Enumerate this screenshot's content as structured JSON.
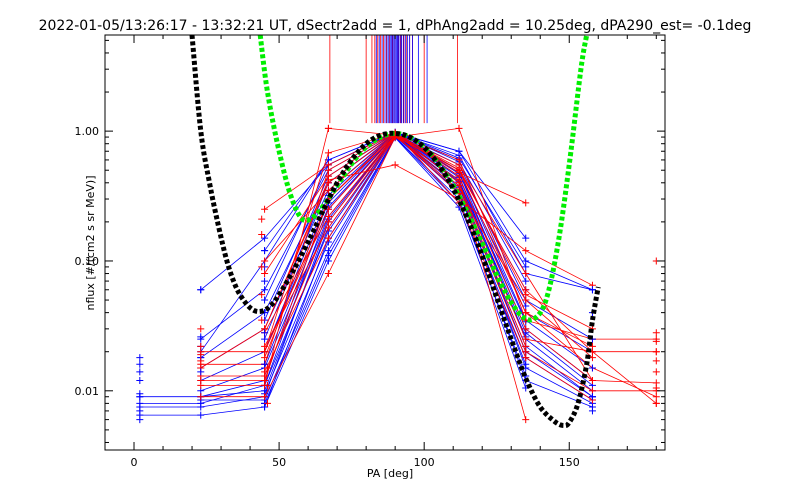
{
  "chart_data": {
    "type": "line",
    "title": "2022-01-05/13:26:17 - 13:32:21 UT, dSectr2add = 1, dPhAng2add = 10.25deg, dPA290_est=  -0.1deg",
    "xlabel": "PA [deg]",
    "ylabel": "nflux [#/(cm2 s sr MeV)]",
    "xlim": [
      -10,
      183
    ],
    "ylim": [
      0.0035,
      5.5
    ],
    "yscale": "log",
    "x_ticks": [
      0,
      50,
      100,
      150
    ],
    "x_tick_labels": [
      "0",
      "50",
      "100",
      "150"
    ],
    "y_ticks": [
      0.01,
      0.1,
      1.0
    ],
    "y_tick_labels": [
      "0.01",
      "0.10",
      "1.00"
    ],
    "grid": false,
    "colors": {
      "series_red": "#ff0000",
      "series_blue": "#0000ff",
      "fit_green": "#00ee00",
      "fit_black": "#000000"
    },
    "series": [
      {
        "color": "#0000ff",
        "style": "line-plus",
        "x": [
          2,
          23,
          45,
          67,
          90,
          112,
          135,
          158
        ],
        "y": [
          0.009,
          0.009,
          0.012,
          0.3,
          0.96,
          0.48,
          0.03,
          0.012
        ]
      },
      {
        "color": "#0000ff",
        "style": "line-plus",
        "x": [
          2,
          23,
          45,
          67,
          90,
          112,
          135,
          158
        ],
        "y": [
          0.008,
          0.008,
          0.011,
          0.25,
          0.95,
          0.45,
          0.025,
          0.01
        ]
      },
      {
        "color": "#0000ff",
        "style": "line-plus",
        "x": [
          2,
          23,
          45,
          67,
          90,
          112,
          135,
          158
        ],
        "y": [
          0.0075,
          0.0075,
          0.009,
          0.2,
          0.94,
          0.4,
          0.02,
          0.009
        ]
      },
      {
        "color": "#0000ff",
        "style": "line-plus",
        "x": [
          2,
          23,
          45,
          67,
          90,
          112,
          135,
          158
        ],
        "y": [
          0.0065,
          0.0065,
          0.0075,
          0.15,
          0.93,
          0.35,
          0.015,
          0.008
        ]
      },
      {
        "color": "#0000ff",
        "style": "line-plus",
        "x": [
          23,
          45,
          67,
          90,
          112,
          135,
          158
        ],
        "y": [
          0.025,
          0.06,
          0.5,
          0.97,
          0.6,
          0.04,
          0.02
        ]
      },
      {
        "color": "#0000ff",
        "style": "line-plus",
        "x": [
          23,
          45,
          67,
          90,
          112,
          135,
          158
        ],
        "y": [
          0.018,
          0.04,
          0.4,
          0.95,
          0.55,
          0.05,
          0.025
        ]
      },
      {
        "color": "#0000ff",
        "style": "line-plus",
        "x": [
          23,
          45,
          67,
          90,
          112,
          135,
          158
        ],
        "y": [
          0.015,
          0.03,
          0.35,
          0.96,
          0.5,
          0.035,
          0.015
        ]
      },
      {
        "color": "#0000ff",
        "style": "line-plus",
        "x": [
          23,
          45,
          67,
          90,
          112,
          135,
          158
        ],
        "y": [
          0.012,
          0.02,
          0.28,
          0.94,
          0.42,
          0.028,
          0.011
        ]
      },
      {
        "color": "#0000ff",
        "style": "line-plus",
        "x": [
          23,
          45,
          67,
          90,
          112,
          135,
          158
        ],
        "y": [
          0.01,
          0.015,
          0.22,
          0.93,
          0.38,
          0.022,
          0.009
        ]
      },
      {
        "color": "#0000ff",
        "style": "line-plus",
        "x": [
          23,
          45,
          67,
          90,
          112,
          135,
          158
        ],
        "y": [
          0.009,
          0.01,
          0.18,
          0.92,
          0.33,
          0.018,
          0.0085
        ]
      },
      {
        "color": "#0000ff",
        "style": "line-plus",
        "x": [
          23,
          45,
          67,
          90,
          112,
          135,
          158
        ],
        "y": [
          0.0085,
          0.0085,
          0.12,
          0.9,
          0.3,
          0.012,
          0.0075
        ]
      },
      {
        "color": "#0000ff",
        "style": "line-plus",
        "x": [
          23,
          45,
          67,
          90,
          112,
          135,
          158
        ],
        "y": [
          0.02,
          0.1,
          0.6,
          0.98,
          0.7,
          0.1,
          0.06
        ]
      },
      {
        "color": "#0000ff",
        "style": "line-plus",
        "x": [
          23,
          45,
          67,
          90,
          112,
          135,
          158
        ],
        "y": [
          0.06,
          0.15,
          0.55,
          0.97,
          0.65,
          0.08,
          0.06
        ]
      },
      {
        "color": "#0000ff",
        "style": "line-plus",
        "x": [
          45,
          67,
          90,
          112,
          135
        ],
        "y": [
          0.025,
          0.4,
          0.96,
          0.5,
          0.06
        ]
      },
      {
        "color": "#0000ff",
        "style": "line-plus",
        "x": [
          45,
          67,
          90,
          112,
          135
        ],
        "y": [
          0.02,
          0.32,
          0.95,
          0.47,
          0.045
        ]
      },
      {
        "color": "#0000ff",
        "style": "line-plus",
        "x": [
          45,
          67,
          90,
          112,
          135
        ],
        "y": [
          0.016,
          0.26,
          0.94,
          0.44,
          0.034
        ]
      },
      {
        "color": "#0000ff",
        "style": "line-plus",
        "x": [
          45,
          67,
          90,
          112,
          135
        ],
        "y": [
          0.013,
          0.21,
          0.93,
          0.41,
          0.026
        ]
      },
      {
        "color": "#0000ff",
        "style": "line-plus",
        "x": [
          45,
          67,
          90,
          112,
          135
        ],
        "y": [
          0.011,
          0.17,
          0.92,
          0.37,
          0.02
        ]
      },
      {
        "color": "#0000ff",
        "style": "line-plus",
        "x": [
          45,
          67,
          90,
          112,
          135
        ],
        "y": [
          0.0095,
          0.14,
          0.91,
          0.34,
          0.016
        ]
      },
      {
        "color": "#0000ff",
        "style": "line-plus",
        "x": [
          45,
          67,
          90,
          112,
          135
        ],
        "y": [
          0.035,
          0.45,
          0.97,
          0.58,
          0.07
        ]
      },
      {
        "color": "#0000ff",
        "style": "line-plus",
        "x": [
          45,
          67,
          90,
          112,
          135
        ],
        "y": [
          0.05,
          0.55,
          0.98,
          0.62,
          0.09
        ]
      },
      {
        "color": "#0000ff",
        "style": "line-plus",
        "x": [
          45,
          67,
          90,
          112,
          135
        ],
        "y": [
          0.008,
          0.11,
          0.9,
          0.28,
          0.013
        ]
      },
      {
        "color": "#0000ff",
        "style": "line-plus",
        "x": [
          45,
          67,
          90,
          112,
          135
        ],
        "y": [
          0.0075,
          0.1,
          0.89,
          0.26,
          0.0105
        ]
      },
      {
        "color": "#0000ff",
        "style": "line-plus",
        "x": [
          45,
          67,
          90,
          112,
          135
        ],
        "y": [
          0.12,
          0.6,
          0.97,
          0.7,
          0.15
        ]
      },
      {
        "color": "#ff0000",
        "style": "line-plus",
        "x": [
          23,
          45,
          67,
          90,
          112,
          135,
          158,
          180
        ],
        "y": [
          0.013,
          0.013,
          0.2,
          0.92,
          0.5,
          0.06,
          0.02,
          0.008
        ]
      },
      {
        "color": "#ff0000",
        "style": "line-plus",
        "x": [
          23,
          45,
          67,
          90,
          112,
          135,
          158,
          180
        ],
        "y": [
          0.012,
          0.012,
          0.3,
          0.95,
          0.6,
          0.04,
          0.015,
          0.009
        ]
      },
      {
        "color": "#ff0000",
        "style": "line-plus",
        "x": [
          23,
          45,
          67,
          90,
          112,
          135,
          158,
          180
        ],
        "y": [
          0.016,
          0.016,
          0.5,
          0.97,
          0.45,
          0.03,
          0.012,
          0.0115
        ]
      },
      {
        "color": "#ff0000",
        "style": "line-plus",
        "x": [
          23,
          45,
          67,
          90,
          112,
          135,
          158,
          180
        ],
        "y": [
          0.02,
          0.02,
          0.68,
          0.96,
          0.4,
          0.025,
          0.02,
          0.02
        ]
      },
      {
        "color": "#ff0000",
        "style": "line-plus",
        "x": [
          23,
          45,
          67,
          90,
          112,
          135,
          158,
          180
        ],
        "y": [
          0.011,
          0.011,
          1.05,
          0.93,
          0.35,
          0.02,
          0.01,
          0.01
        ]
      },
      {
        "color": "#ff0000",
        "style": "line-plus",
        "x": [
          23,
          45,
          67,
          90,
          112,
          135,
          158,
          180
        ],
        "y": [
          0.009,
          0.009,
          0.08,
          0.9,
          1.05,
          0.035,
          0.025,
          0.025
        ]
      },
      {
        "color": "#ff0000",
        "style": "line-plus",
        "x": [
          23,
          45,
          67,
          90,
          112,
          135,
          158
        ],
        "y": [
          0.015,
          0.03,
          0.42,
          0.55,
          0.3,
          0.12,
          0.065
        ]
      },
      {
        "color": "#ff0000",
        "style": "line-plus",
        "x": [
          45,
          67,
          90,
          112,
          135,
          158
        ],
        "y": [
          0.25,
          0.55,
          0.97,
          0.28,
          0.018,
          0.0085
        ]
      },
      {
        "color": "#ff0000",
        "style": "line-plus",
        "x": [
          45,
          67,
          90,
          112,
          135,
          158
        ],
        "y": [
          0.1,
          0.35,
          0.94,
          0.33,
          0.05,
          0.018
        ]
      },
      {
        "color": "#ff0000",
        "style": "line-plus",
        "x": [
          45,
          67,
          90,
          112,
          135,
          158
        ],
        "y": [
          0.02,
          0.25,
          0.93,
          0.55,
          0.08,
          0.012
        ]
      },
      {
        "color": "#ff0000",
        "style": "line-plus",
        "x": [
          45,
          67,
          90,
          112,
          135
        ],
        "y": [
          0.028,
          0.22,
          0.92,
          0.48,
          0.28
        ]
      },
      {
        "color": "#ff0000",
        "style": "line-plus",
        "x": [
          45,
          67,
          90,
          112,
          135
        ],
        "y": [
          0.022,
          0.18,
          0.91,
          0.38,
          0.022
        ]
      },
      {
        "color": "#ff0000",
        "style": "line-plus",
        "x": [
          45,
          67,
          90,
          112,
          135
        ],
        "y": [
          0.014,
          0.15,
          0.9,
          0.42,
          0.006
        ]
      },
      {
        "color": "#ff0000",
        "style": "line-plus",
        "x": [
          45,
          67,
          90,
          112,
          135,
          158
        ],
        "y": [
          0.018,
          0.3,
          0.92,
          0.5,
          0.04,
          0.022
        ]
      },
      {
        "color": "#ff0000",
        "style": "line-plus",
        "x": [
          45,
          67,
          90,
          112,
          135,
          158
        ],
        "y": [
          0.03,
          0.4,
          0.95,
          0.52,
          0.055,
          0.03
        ]
      },
      {
        "color": "#ff0000",
        "style": "line-plus",
        "x": [
          45,
          67,
          90,
          112
        ],
        "y": [
          0.08,
          0.45,
          0.96,
          0.5
        ]
      }
    ],
    "scatter": [
      {
        "color": "#0000ff",
        "x": [
          2,
          2,
          2,
          2,
          2,
          2,
          2,
          2,
          23,
          23,
          23,
          23,
          23,
          45,
          45,
          45,
          45,
          45,
          45,
          45,
          158,
          158,
          158,
          158,
          158,
          158
        ],
        "y": [
          0.018,
          0.016,
          0.014,
          0.012,
          0.0095,
          0.009,
          0.007,
          0.006,
          0.06,
          0.026,
          0.022,
          0.018,
          0.014,
          0.12,
          0.09,
          0.07,
          0.04,
          0.028,
          0.016,
          0.008,
          0.06,
          0.04,
          0.025,
          0.015,
          0.009,
          0.007
        ]
      },
      {
        "color": "#ff0000",
        "x": [
          23,
          23,
          23,
          23,
          44,
          44,
          44,
          44,
          44,
          46,
          46,
          46,
          67,
          67,
          180,
          180,
          180,
          180,
          180,
          180,
          180,
          180
        ],
        "y": [
          0.03,
          0.022,
          0.019,
          0.017,
          0.21,
          0.16,
          0.09,
          0.055,
          0.035,
          0.015,
          0.011,
          0.008,
          1.05,
          0.08,
          0.1,
          0.028,
          0.024,
          0.02,
          0.017,
          0.014,
          0.0105,
          0.008
        ]
      }
    ],
    "vertical_lines": [
      {
        "color": "#ff0000",
        "x": [
          67.5,
          80,
          82,
          83,
          84,
          85,
          86,
          87,
          88,
          89,
          90,
          91,
          92,
          93,
          94,
          95,
          96,
          100,
          111.5
        ]
      },
      {
        "color": "#0000ff",
        "x": [
          83.5,
          84.5,
          85.5,
          86.5,
          87.2,
          87.8,
          88.3,
          88.8,
          89.2,
          89.6,
          90,
          90.4,
          90.8,
          91.2,
          91.7,
          92.2,
          92.8,
          93.5,
          94.2,
          95,
          96,
          98,
          101
        ]
      }
    ],
    "fit_curves": [
      {
        "color": "#00ee00",
        "style": "dashed-thick",
        "x": [
          43.5,
          46,
          50,
          54,
          58,
          62,
          66,
          70,
          74,
          78,
          82,
          86,
          90,
          94,
          98,
          102,
          106,
          110,
          114,
          118,
          122,
          126,
          130,
          134,
          138,
          142,
          146,
          150,
          154,
          156
        ],
        "y": [
          5.5,
          2.0,
          0.7,
          0.32,
          0.21,
          0.22,
          0.28,
          0.38,
          0.52,
          0.68,
          0.82,
          0.92,
          0.96,
          0.92,
          0.82,
          0.68,
          0.52,
          0.38,
          0.26,
          0.17,
          0.11,
          0.07,
          0.048,
          0.037,
          0.036,
          0.05,
          0.13,
          0.55,
          3.0,
          5.5
        ]
      },
      {
        "color": "#000000",
        "style": "dashed-thick",
        "x": [
          20,
          23,
          26,
          29,
          32,
          35,
          38,
          41,
          44,
          47,
          50,
          55,
          60,
          65,
          70,
          75,
          80,
          85,
          90,
          95,
          100,
          105,
          110,
          115,
          120,
          125,
          130,
          135,
          140,
          145,
          148,
          150,
          153,
          156,
          158,
          160
        ],
        "y": [
          5.5,
          1.0,
          0.4,
          0.19,
          0.1,
          0.064,
          0.049,
          0.042,
          0.041,
          0.045,
          0.055,
          0.085,
          0.14,
          0.24,
          0.4,
          0.6,
          0.8,
          0.93,
          0.96,
          0.9,
          0.75,
          0.55,
          0.36,
          0.21,
          0.11,
          0.052,
          0.025,
          0.0125,
          0.0075,
          0.0058,
          0.0054,
          0.0057,
          0.008,
          0.016,
          0.035,
          0.063
        ]
      }
    ]
  }
}
